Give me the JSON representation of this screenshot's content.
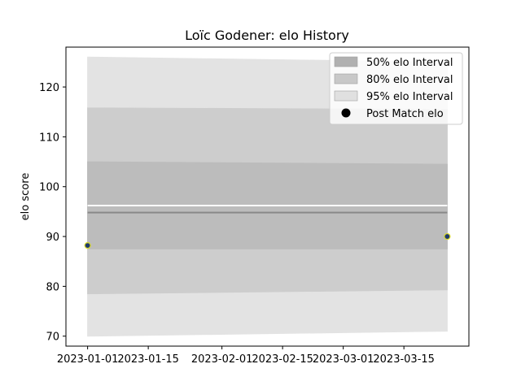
{
  "chart_data": {
    "type": "area",
    "title": "Loïc Godener: elo History",
    "xlabel": "",
    "ylabel": "elo score",
    "xlim": [
      "2022-12-27",
      "2023-03-30"
    ],
    "ylim": [
      68,
      128
    ],
    "x_ticks": [
      "2023-01-01",
      "2023-01-15",
      "2023-02-01",
      "2023-02-15",
      "2023-03-01",
      "2023-03-15"
    ],
    "y_ticks": [
      70,
      80,
      90,
      100,
      110,
      120
    ],
    "grid": false,
    "legend_position": "top-right",
    "x": [
      "2023-01-01",
      "2023-03-25"
    ],
    "bands": [
      {
        "name": "95% elo Interval",
        "lower": [
          70.0,
          71.0
        ],
        "upper": [
          126.0,
          125.0
        ],
        "color": "#e3e3e3"
      },
      {
        "name": "80% elo Interval",
        "lower": [
          78.5,
          79.3
        ],
        "upper": [
          115.8,
          115.5
        ],
        "color": "#cdcdcd"
      },
      {
        "name": "50% elo Interval",
        "lower": [
          87.5,
          87.5
        ],
        "upper": [
          105.0,
          104.5
        ],
        "color": "#bcbcbc"
      }
    ],
    "lines": [
      {
        "values": [
          96.2,
          96.2
        ],
        "color": "#ffffff"
      },
      {
        "values": [
          94.8,
          94.8
        ],
        "color": "#888888"
      }
    ],
    "series": [
      {
        "name": "Post Match elo",
        "type": "scatter",
        "x": [
          "2023-01-01",
          "2023-03-25"
        ],
        "values": [
          88.2,
          90.0
        ],
        "color": "#1f3a6e",
        "edge": "#d9d92a"
      }
    ],
    "legend": [
      {
        "label": "50% elo Interval",
        "kind": "patch",
        "color": "#b0b0b0"
      },
      {
        "label": "80% elo Interval",
        "kind": "patch",
        "color": "#c8c8c8"
      },
      {
        "label": "95% elo Interval",
        "kind": "patch",
        "color": "#e0e0e0"
      },
      {
        "label": "Post Match elo",
        "kind": "marker",
        "color": "#000000"
      }
    ]
  }
}
